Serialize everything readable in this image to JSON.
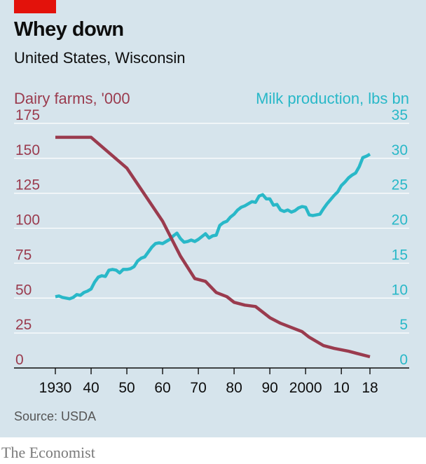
{
  "header": {
    "title": "Whey down",
    "subtitle": "United States, Wisconsin"
  },
  "footer": {
    "source": "Source: USDA",
    "brand": "The Economist"
  },
  "colors": {
    "farms": "#9a3b4e",
    "milk": "#29b8c8",
    "accent": "#e3120b",
    "background": "#d6e4ec"
  },
  "chart_data": {
    "type": "line",
    "xlim": [
      1930,
      2018
    ],
    "x_tick_labels": [
      {
        "x": 1930,
        "label": "1930"
      },
      {
        "x": 1940,
        "label": "40"
      },
      {
        "x": 1950,
        "label": "50"
      },
      {
        "x": 1960,
        "label": "60"
      },
      {
        "x": 1970,
        "label": "70"
      },
      {
        "x": 1980,
        "label": "80"
      },
      {
        "x": 1990,
        "label": "90"
      },
      {
        "x": 2000,
        "label": "2000"
      },
      {
        "x": 2010,
        "label": "10"
      },
      {
        "x": 2018,
        "label": "18"
      }
    ],
    "left_axis": {
      "label": "Dairy farms, '000",
      "ylim": [
        0,
        175
      ],
      "ticks": [
        "0",
        "25",
        "50",
        "75",
        "100",
        "125",
        "150",
        "175"
      ]
    },
    "right_axis": {
      "label": "Milk production, lbs bn",
      "ylim": [
        0,
        35
      ],
      "ticks": [
        "0",
        "5",
        "10",
        "15",
        "20",
        "25",
        "30",
        "35"
      ]
    },
    "grid": true,
    "series": [
      {
        "name": "Dairy farms, '000",
        "axis": "left",
        "points": [
          [
            1930,
            165
          ],
          [
            1940,
            165
          ],
          [
            1950,
            143
          ],
          [
            1955,
            124
          ],
          [
            1960,
            105
          ],
          [
            1965,
            80
          ],
          [
            1969,
            64
          ],
          [
            1972,
            62
          ],
          [
            1975,
            54
          ],
          [
            1978,
            51
          ],
          [
            1980,
            47
          ],
          [
            1983,
            45
          ],
          [
            1986,
            44
          ],
          [
            1990,
            36
          ],
          [
            1993,
            32
          ],
          [
            1996,
            29
          ],
          [
            1999,
            26
          ],
          [
            2001,
            22
          ],
          [
            2003,
            19
          ],
          [
            2005,
            16
          ],
          [
            2008,
            14
          ],
          [
            2012,
            12
          ],
          [
            2015,
            10
          ],
          [
            2018,
            8
          ]
        ]
      },
      {
        "name": "Milk production, lbs bn",
        "axis": "right",
        "points": [
          [
            1930,
            10.2
          ],
          [
            1931,
            10.3
          ],
          [
            1932,
            10.1
          ],
          [
            1933,
            10.0
          ],
          [
            1934,
            9.9
          ],
          [
            1935,
            10.1
          ],
          [
            1936,
            10.5
          ],
          [
            1937,
            10.4
          ],
          [
            1938,
            10.8
          ],
          [
            1939,
            11.0
          ],
          [
            1940,
            11.3
          ],
          [
            1941,
            12.3
          ],
          [
            1942,
            13.0
          ],
          [
            1943,
            13.2
          ],
          [
            1944,
            13.1
          ],
          [
            1945,
            14.0
          ],
          [
            1946,
            14.1
          ],
          [
            1947,
            14.0
          ],
          [
            1948,
            13.6
          ],
          [
            1949,
            14.1
          ],
          [
            1950,
            14.1
          ],
          [
            1951,
            14.2
          ],
          [
            1952,
            14.5
          ],
          [
            1953,
            15.3
          ],
          [
            1954,
            15.7
          ],
          [
            1955,
            15.9
          ],
          [
            1956,
            16.6
          ],
          [
            1957,
            17.3
          ],
          [
            1958,
            17.8
          ],
          [
            1959,
            17.9
          ],
          [
            1960,
            17.8
          ],
          [
            1961,
            18.1
          ],
          [
            1962,
            18.4
          ],
          [
            1963,
            18.9
          ],
          [
            1964,
            19.3
          ],
          [
            1965,
            18.5
          ],
          [
            1966,
            18.0
          ],
          [
            1967,
            18.1
          ],
          [
            1968,
            18.3
          ],
          [
            1969,
            18.1
          ],
          [
            1970,
            18.4
          ],
          [
            1971,
            18.8
          ],
          [
            1972,
            19.2
          ],
          [
            1973,
            18.6
          ],
          [
            1974,
            18.9
          ],
          [
            1975,
            19.0
          ],
          [
            1976,
            20.4
          ],
          [
            1977,
            20.8
          ],
          [
            1978,
            21.0
          ],
          [
            1979,
            21.6
          ],
          [
            1980,
            22.0
          ],
          [
            1981,
            22.6
          ],
          [
            1982,
            23.0
          ],
          [
            1983,
            23.2
          ],
          [
            1984,
            23.5
          ],
          [
            1985,
            23.8
          ],
          [
            1986,
            23.7
          ],
          [
            1987,
            24.6
          ],
          [
            1988,
            24.8
          ],
          [
            1989,
            24.2
          ],
          [
            1990,
            24.2
          ],
          [
            1991,
            23.3
          ],
          [
            1992,
            23.4
          ],
          [
            1993,
            22.6
          ],
          [
            1994,
            22.4
          ],
          [
            1995,
            22.6
          ],
          [
            1996,
            22.3
          ],
          [
            1997,
            22.5
          ],
          [
            1998,
            22.9
          ],
          [
            1999,
            23.1
          ],
          [
            2000,
            23.0
          ],
          [
            2001,
            21.9
          ],
          [
            2002,
            21.8
          ],
          [
            2003,
            21.9
          ],
          [
            2004,
            22.0
          ],
          [
            2005,
            22.8
          ],
          [
            2006,
            23.5
          ],
          [
            2007,
            24.1
          ],
          [
            2008,
            24.7
          ],
          [
            2009,
            25.2
          ],
          [
            2010,
            26.1
          ],
          [
            2011,
            26.6
          ],
          [
            2012,
            27.2
          ],
          [
            2013,
            27.6
          ],
          [
            2014,
            27.9
          ],
          [
            2015,
            28.8
          ],
          [
            2016,
            30.1
          ],
          [
            2017,
            30.3
          ],
          [
            2018,
            30.6
          ]
        ]
      }
    ]
  }
}
